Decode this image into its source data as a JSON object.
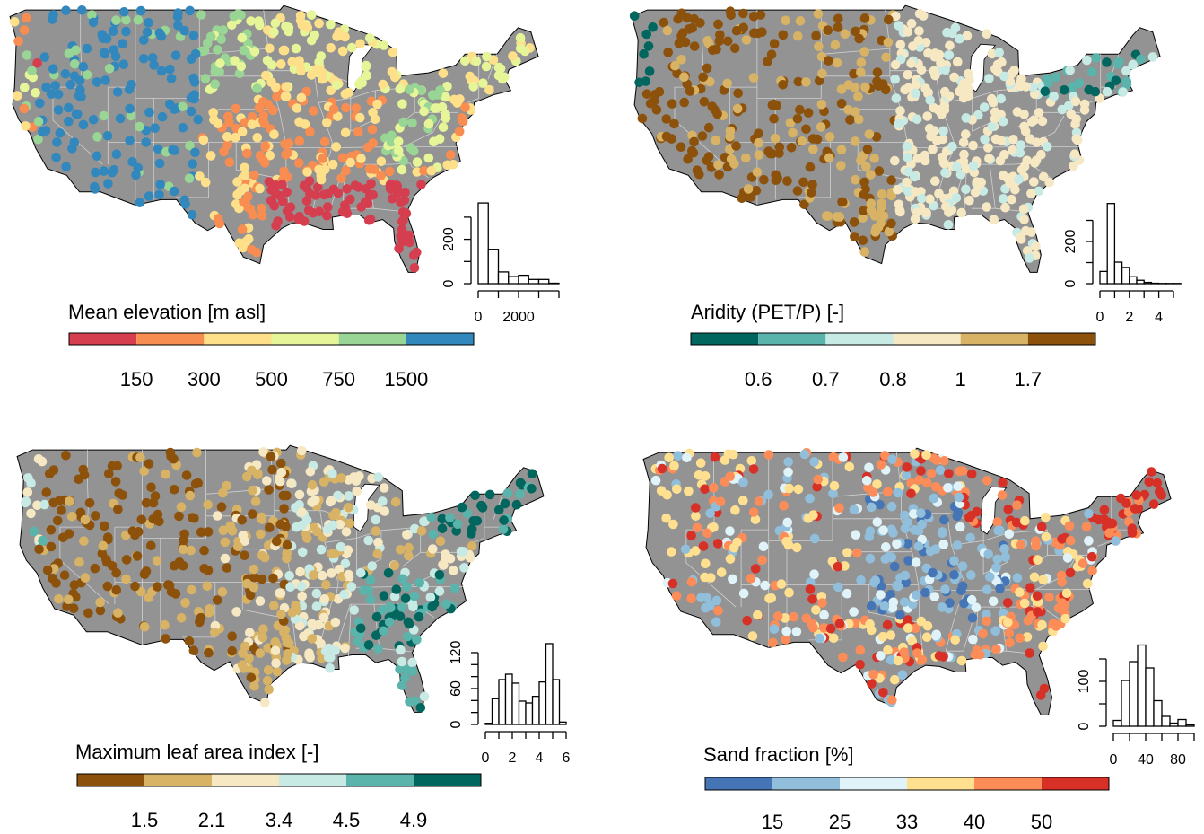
{
  "panels": [
    {
      "id": "elevation",
      "title": "Mean elevation [m asl]",
      "legend_breaks": [
        "150",
        "300",
        "500",
        "750",
        "1500"
      ],
      "colors": [
        "#d53e4f",
        "#f88d52",
        "#fee08b",
        "#e6f598",
        "#99d594",
        "#3288bd"
      ],
      "histogram": {
        "bin_width": 500,
        "bin_start": 0,
        "counts": [
          364,
          155,
          53,
          32,
          38,
          19,
          19,
          2
        ],
        "x_ticks": [
          0,
          1000,
          2000,
          3000,
          4000
        ],
        "x_tick_labels": [
          "0",
          "",
          "2000",
          "",
          ""
        ],
        "y_ticks": [
          0,
          100,
          200,
          300
        ],
        "y_tick_labels": [
          "0",
          "",
          "200",
          ""
        ]
      }
    },
    {
      "id": "aridity",
      "title": "Aridity (PET/P) [-]",
      "legend_breaks": [
        "0.6",
        "0.7",
        "0.8",
        "1",
        "1.7"
      ],
      "colors": [
        "#01665e",
        "#5ab4ac",
        "#c7eae5",
        "#f6e8c3",
        "#d8b365",
        "#8c510a"
      ],
      "histogram": {
        "bin_width": 0.5,
        "bin_start": 0,
        "counts": [
          58,
          380,
          102,
          77,
          33,
          16,
          6,
          2,
          1,
          1,
          1
        ],
        "x_ticks": [
          0,
          1,
          2,
          3,
          4,
          5
        ],
        "x_tick_labels": [
          "0",
          "",
          "2",
          "",
          "4",
          ""
        ],
        "y_ticks": [
          0,
          100,
          200,
          300
        ],
        "y_tick_labels": [
          "0",
          "",
          "200",
          ""
        ]
      }
    },
    {
      "id": "lai",
      "title": "Maximum leaf area index [-]",
      "legend_breaks": [
        "1.5",
        "2.1",
        "3.4",
        "4.5",
        "4.9"
      ],
      "colors": [
        "#8c510a",
        "#d8b365",
        "#f6e8c3",
        "#c7eae5",
        "#5ab4ac",
        "#01665e"
      ],
      "histogram": {
        "bin_width": 0.5,
        "bin_start": 0,
        "counts": [
          2,
          43,
          75,
          84,
          69,
          39,
          36,
          47,
          71,
          135,
          75,
          4
        ],
        "x_ticks": [
          0,
          1,
          2,
          3,
          4,
          5,
          6
        ],
        "x_tick_labels": [
          "0",
          "",
          "2",
          "",
          "4",
          "",
          "6"
        ],
        "y_ticks": [
          0,
          20,
          40,
          60,
          80,
          100,
          120
        ],
        "y_tick_labels": [
          "0",
          "",
          "",
          "60",
          "",
          "",
          "120"
        ]
      }
    },
    {
      "id": "sand",
      "title": "Sand fraction [%]",
      "legend_breaks": [
        "15",
        "25",
        "33",
        "40",
        "50"
      ],
      "colors": [
        "#4575b4",
        "#91bfdb",
        "#e0f3f8",
        "#fee090",
        "#fc8d59",
        "#d73027"
      ],
      "histogram": {
        "bin_width": 10,
        "bin_start": 0,
        "counts": [
          13,
          102,
          144,
          181,
          130,
          57,
          22,
          7,
          15,
          3
        ],
        "x_ticks": [
          0,
          20,
          40,
          60,
          80,
          100
        ],
        "x_tick_labels": [
          "0",
          "",
          "40",
          "",
          "80",
          ""
        ],
        "y_ticks": [
          0,
          50,
          100,
          150
        ],
        "y_tick_labels": [
          "0",
          "",
          "100",
          ""
        ]
      }
    }
  ],
  "map_fill": "#939393",
  "lake_fill": "#ffffff"
}
